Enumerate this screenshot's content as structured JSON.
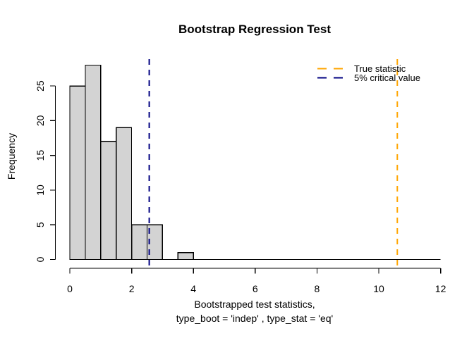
{
  "chart_data": {
    "type": "bar",
    "subtype": "histogram",
    "title": "Bootstrap Regression Test",
    "xlabel": [
      "Bootstrapped test statistics,",
      "type_boot = 'indep' , type_stat = 'eq'"
    ],
    "ylabel": "Frequency",
    "bins": {
      "start": 0,
      "width": 0.5,
      "counts": [
        25,
        28,
        17,
        19,
        5,
        5,
        0,
        1,
        0,
        0,
        0,
        0,
        0,
        0,
        0,
        0,
        0,
        0,
        0,
        0,
        0,
        0,
        0,
        0
      ]
    },
    "xlim": [
      0,
      12
    ],
    "ylim": [
      0,
      28
    ],
    "x_ticks": [
      0,
      2,
      4,
      6,
      8,
      10,
      12
    ],
    "y_ticks": [
      0,
      5,
      10,
      15,
      20,
      25
    ],
    "grid": false,
    "bar_fill": "#D3D3D3",
    "bar_stroke": "#000000",
    "vlines": [
      {
        "value": 10.6,
        "color": "#FFA500",
        "style": "dashed",
        "name": "True statistic"
      },
      {
        "value": 2.57,
        "color": "#000080",
        "style": "dashed",
        "name": "5% critical value"
      }
    ],
    "legend": {
      "position": "topright",
      "entries": [
        {
          "label": "True statistic",
          "color": "#FFA500",
          "line_style": "dashed"
        },
        {
          "label": "5% critical value",
          "color": "#000080",
          "line_style": "dashed"
        }
      ]
    }
  }
}
